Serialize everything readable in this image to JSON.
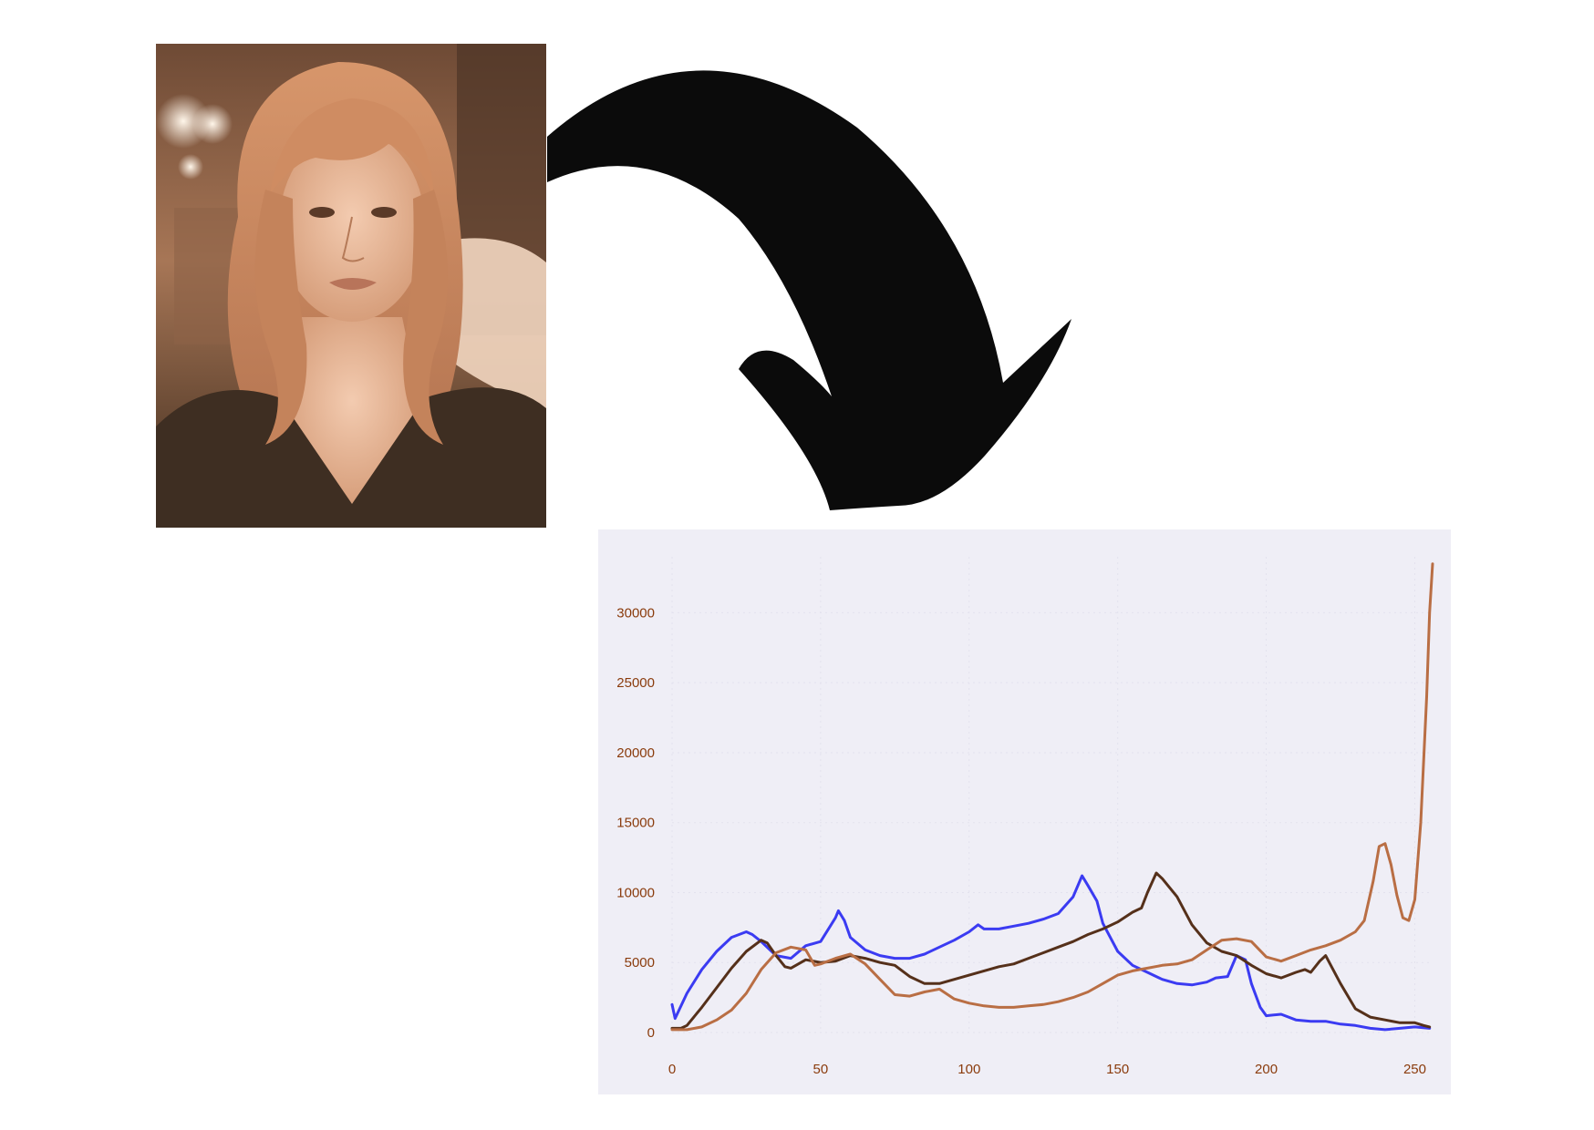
{
  "photo": {
    "description_icon": "portrait-photo",
    "tint": "#c98c62"
  },
  "arrow": {
    "icon": "curved-arrow-down-icon",
    "color": "#0b0b0b"
  },
  "chart_data": {
    "type": "line",
    "title": "",
    "xlabel": "",
    "ylabel": "",
    "xlim": [
      0,
      256
    ],
    "ylim": [
      0,
      34000
    ],
    "x_ticks": [
      "0",
      "50",
      "100",
      "150",
      "200",
      "250"
    ],
    "x_tick_values": [
      0,
      50,
      100,
      150,
      200,
      250
    ],
    "y_ticks": [
      "0",
      "5000",
      "10000",
      "15000",
      "20000",
      "25000",
      "30000"
    ],
    "y_tick_values": [
      0,
      5000,
      10000,
      15000,
      20000,
      25000,
      30000
    ],
    "grid": true,
    "background": "#efeef6",
    "series": [
      {
        "name": "blue",
        "color": "#3b3bf2",
        "x": [
          0,
          1,
          5,
          10,
          15,
          20,
          25,
          27,
          30,
          35,
          40,
          45,
          50,
          55,
          56,
          58,
          60,
          65,
          70,
          75,
          80,
          85,
          90,
          95,
          100,
          103,
          105,
          110,
          115,
          120,
          125,
          130,
          135,
          138,
          140,
          143,
          145,
          150,
          155,
          160,
          165,
          170,
          175,
          180,
          183,
          187,
          190,
          193,
          195,
          198,
          200,
          205,
          210,
          215,
          220,
          225,
          230,
          235,
          240,
          245,
          250,
          255
        ],
        "y": [
          2000,
          1000,
          2800,
          4500,
          5800,
          6800,
          7200,
          7000,
          6500,
          5500,
          5300,
          6200,
          6500,
          8200,
          8700,
          8000,
          6800,
          5900,
          5500,
          5300,
          5300,
          5600,
          6100,
          6600,
          7200,
          7700,
          7400,
          7400,
          7600,
          7800,
          8100,
          8500,
          9700,
          11200,
          10500,
          9400,
          7800,
          5800,
          4800,
          4300,
          3800,
          3500,
          3400,
          3600,
          3900,
          4000,
          5500,
          5200,
          3500,
          1800,
          1200,
          1300,
          900,
          800,
          800,
          600,
          500,
          300,
          200,
          300,
          400,
          300
        ]
      },
      {
        "name": "dark-brown",
        "color": "#55301a",
        "x": [
          0,
          3,
          5,
          10,
          15,
          20,
          25,
          30,
          32,
          35,
          38,
          40,
          45,
          50,
          55,
          60,
          65,
          70,
          75,
          80,
          85,
          90,
          95,
          100,
          105,
          110,
          115,
          120,
          125,
          130,
          135,
          140,
          145,
          150,
          155,
          158,
          160,
          163,
          165,
          170,
          175,
          180,
          185,
          190,
          195,
          200,
          205,
          210,
          213,
          215,
          218,
          220,
          225,
          230,
          235,
          240,
          245,
          250,
          253,
          255
        ],
        "y": [
          300,
          300,
          500,
          1800,
          3200,
          4600,
          5800,
          6600,
          6400,
          5500,
          4700,
          4600,
          5200,
          5000,
          5100,
          5500,
          5300,
          5000,
          4800,
          4000,
          3500,
          3500,
          3800,
          4100,
          4400,
          4700,
          4900,
          5300,
          5700,
          6100,
          6500,
          7000,
          7400,
          7900,
          8600,
          8900,
          10000,
          11400,
          11000,
          9700,
          7700,
          6400,
          5800,
          5500,
          4800,
          4200,
          3900,
          4300,
          4500,
          4300,
          5100,
          5500,
          3500,
          1700,
          1100,
          900,
          700,
          700,
          500,
          400
        ]
      },
      {
        "name": "light-brown",
        "color": "#b96e44",
        "x": [
          0,
          5,
          10,
          15,
          20,
          25,
          30,
          35,
          40,
          45,
          48,
          50,
          55,
          60,
          65,
          70,
          75,
          80,
          85,
          90,
          95,
          100,
          105,
          110,
          115,
          120,
          125,
          130,
          135,
          140,
          145,
          150,
          155,
          160,
          165,
          170,
          175,
          180,
          185,
          190,
          195,
          200,
          205,
          210,
          215,
          220,
          225,
          230,
          233,
          236,
          238,
          240,
          242,
          244,
          246,
          248,
          250,
          252,
          254,
          255,
          256
        ],
        "y": [
          200,
          200,
          400,
          900,
          1600,
          2800,
          4500,
          5700,
          6100,
          5900,
          4800,
          4900,
          5300,
          5600,
          4900,
          3800,
          2700,
          2600,
          2900,
          3100,
          2400,
          2100,
          1900,
          1800,
          1800,
          1900,
          2000,
          2200,
          2500,
          2900,
          3500,
          4100,
          4400,
          4600,
          4800,
          4900,
          5200,
          5900,
          6600,
          6700,
          6500,
          5400,
          5100,
          5500,
          5900,
          6200,
          6600,
          7200,
          8000,
          10800,
          13300,
          13500,
          12000,
          9800,
          8200,
          8000,
          9500,
          15000,
          24000,
          30000,
          33500
        ]
      }
    ]
  }
}
